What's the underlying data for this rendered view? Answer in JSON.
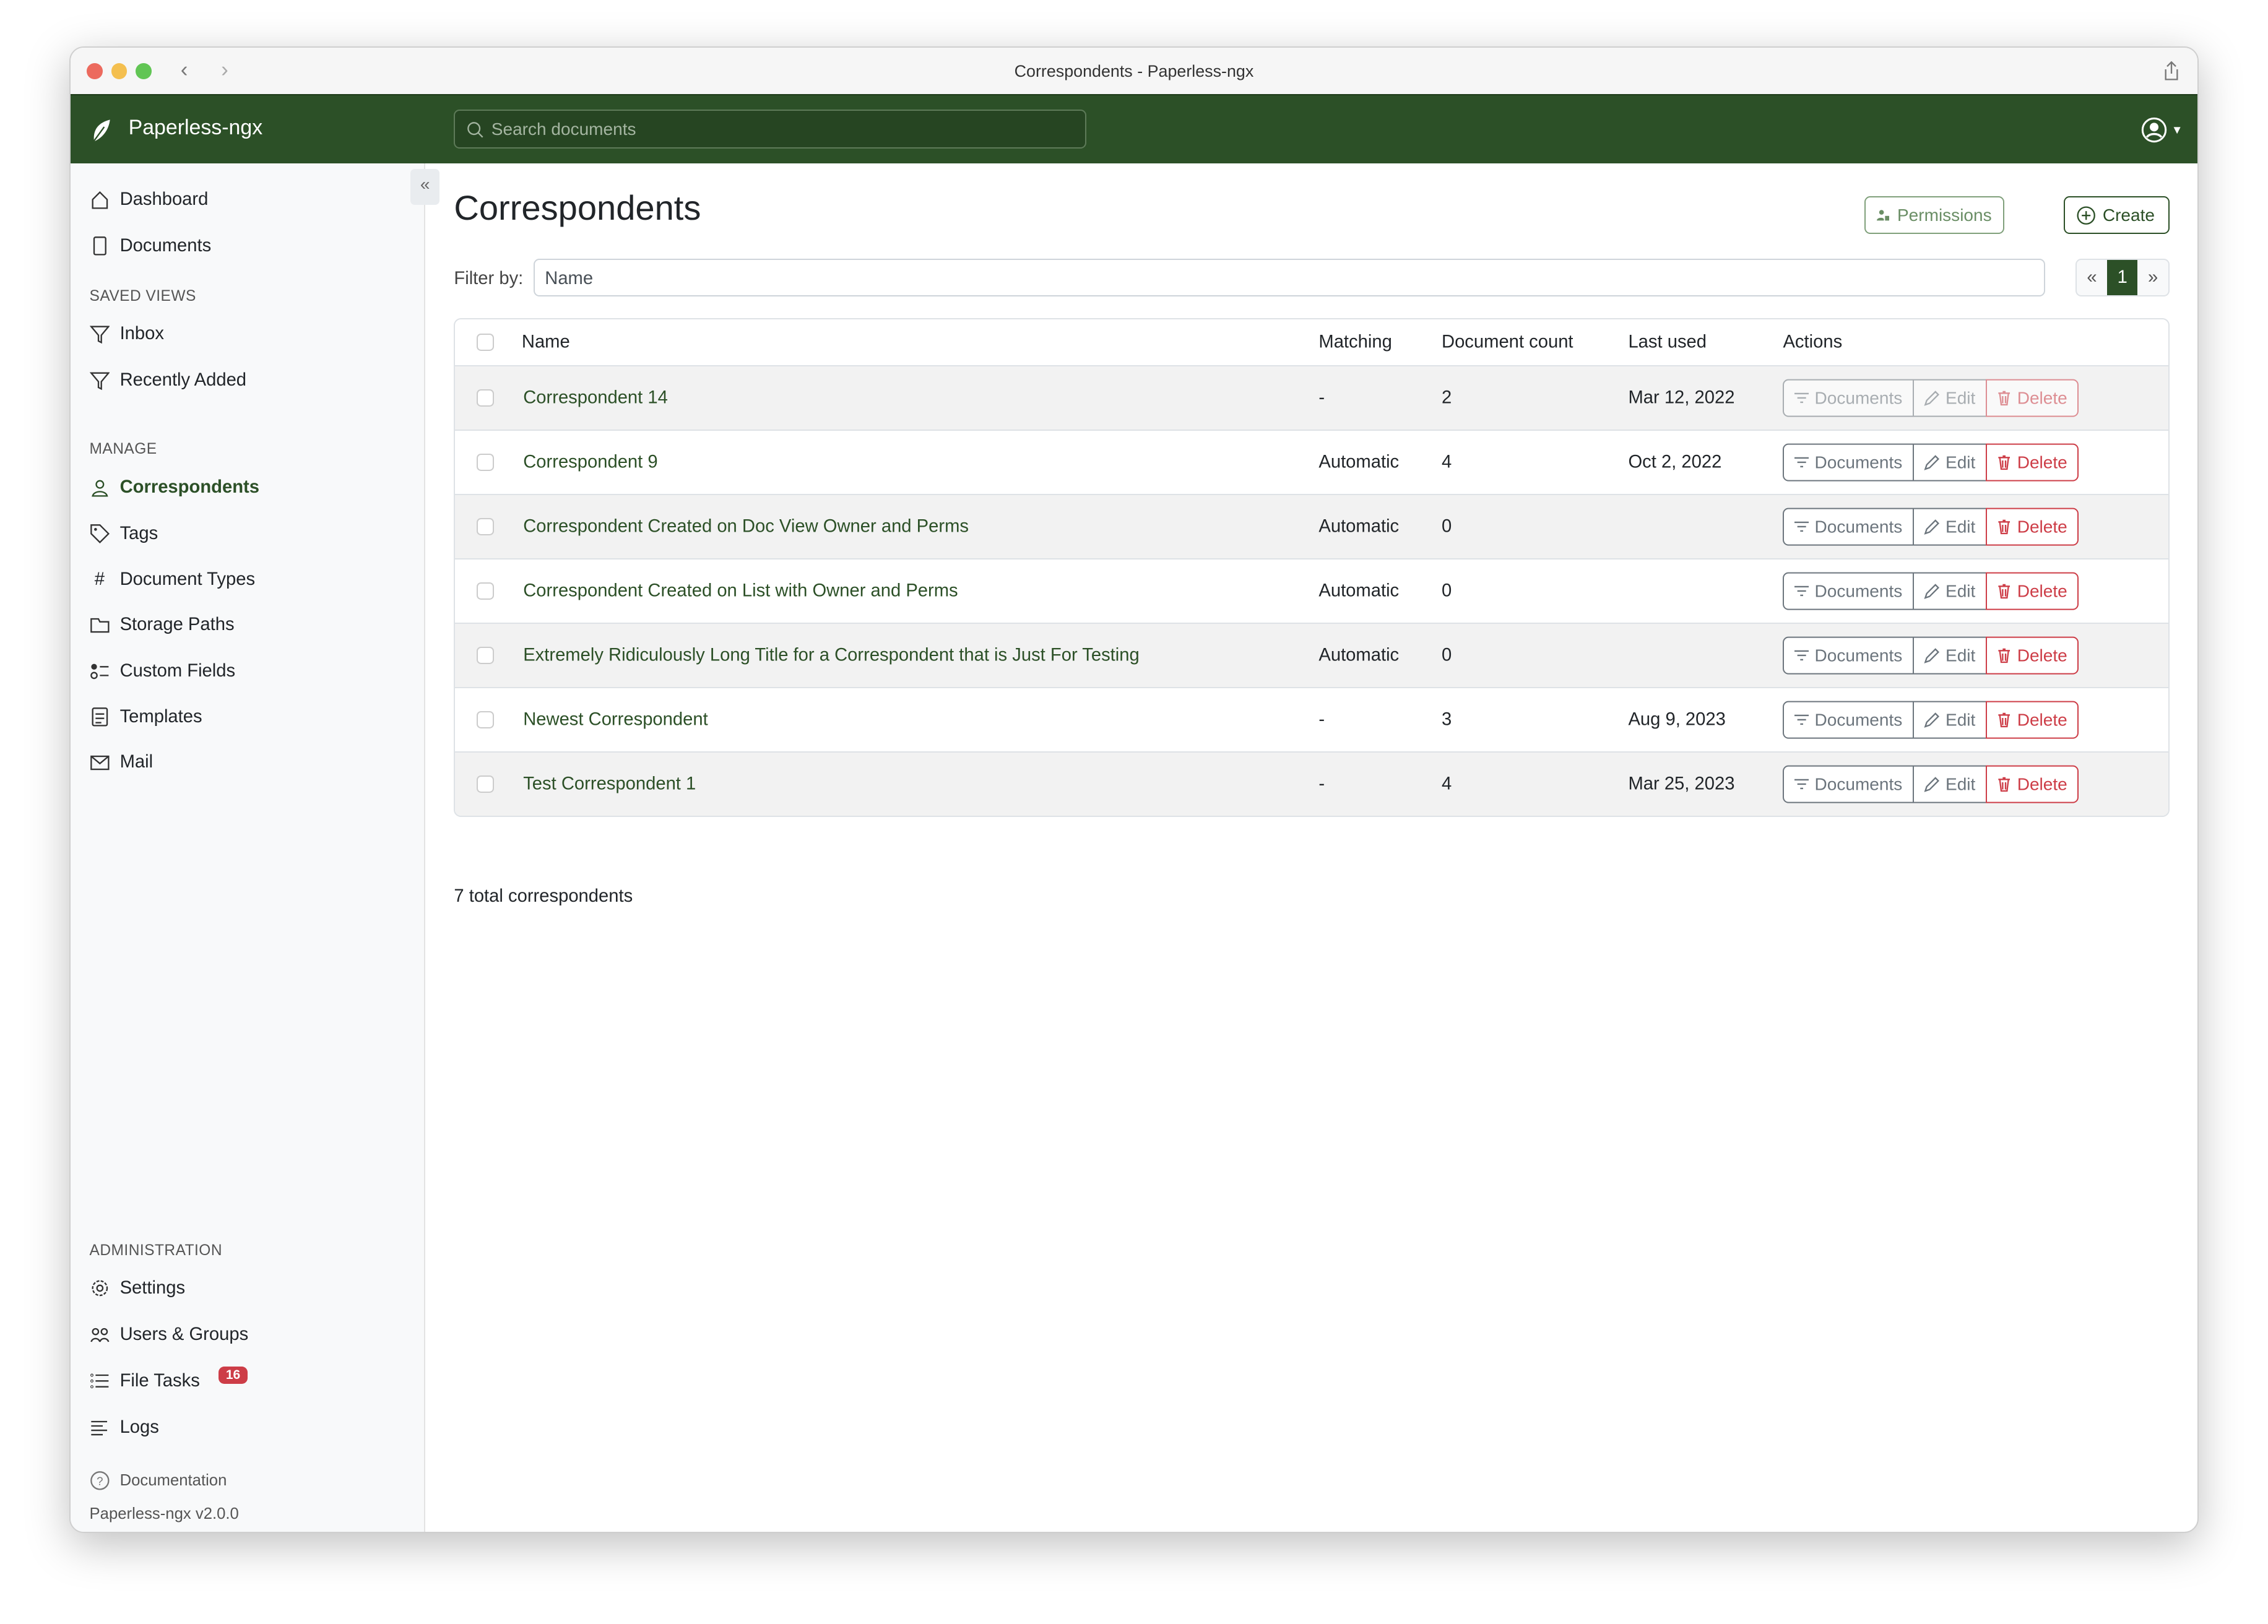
{
  "window": {
    "title": "Correspondents - Paperless-ngx"
  },
  "header": {
    "brand": "Paperless-ngx",
    "search_placeholder": "Search documents"
  },
  "sidebar": {
    "items": [
      {
        "label": "Dashboard",
        "icon": "house-icon"
      },
      {
        "label": "Documents",
        "icon": "files-icon"
      }
    ],
    "saved_views_heading": "SAVED VIEWS",
    "saved_views": [
      {
        "label": "Inbox",
        "icon": "funnel-icon"
      },
      {
        "label": "Recently Added",
        "icon": "funnel-icon"
      }
    ],
    "manage_heading": "MANAGE",
    "manage": [
      {
        "label": "Correspondents",
        "icon": "person-icon",
        "active": true
      },
      {
        "label": "Tags",
        "icon": "tags-icon"
      },
      {
        "label": "Document Types",
        "icon": "hash-icon"
      },
      {
        "label": "Storage Paths",
        "icon": "folder-icon"
      },
      {
        "label": "Custom Fields",
        "icon": "ui-radios-icon"
      },
      {
        "label": "Templates",
        "icon": "file-text-icon"
      },
      {
        "label": "Mail",
        "icon": "envelope-icon"
      }
    ],
    "admin_heading": "ADMINISTRATION",
    "admin": [
      {
        "label": "Settings",
        "icon": "gear-icon"
      },
      {
        "label": "Users & Groups",
        "icon": "people-icon"
      },
      {
        "label": "File Tasks",
        "icon": "list-task-icon",
        "badge": "16"
      },
      {
        "label": "Logs",
        "icon": "text-left-icon"
      }
    ],
    "documentation": "Documentation",
    "version": "Paperless-ngx v2.0.0"
  },
  "main": {
    "title": "Correspondents",
    "permissions_label": "Permissions",
    "create_label": "Create",
    "filter_label": "Filter by:",
    "filter_placeholder": "Name",
    "pager": {
      "prev": "«",
      "current": "1",
      "next": "»"
    },
    "columns": [
      "Name",
      "Matching",
      "Document count",
      "Last used",
      "Actions"
    ],
    "actions": {
      "documents": "Documents",
      "edit": "Edit",
      "delete": "Delete"
    },
    "rows": [
      {
        "name": "Correspondent 14",
        "matching": "-",
        "count": "2",
        "last_used": "Mar 12, 2022",
        "disabled": true
      },
      {
        "name": "Correspondent 9",
        "matching": "Automatic",
        "count": "4",
        "last_used": "Oct 2, 2022"
      },
      {
        "name": "Correspondent Created on Doc View Owner and Perms",
        "matching": "Automatic",
        "count": "0",
        "last_used": ""
      },
      {
        "name": "Correspondent Created on List with Owner and Perms",
        "matching": "Automatic",
        "count": "0",
        "last_used": ""
      },
      {
        "name": "Extremely Ridiculously Long Title for a Correspondent that is Just For Testing",
        "matching": "Automatic",
        "count": "0",
        "last_used": ""
      },
      {
        "name": "Newest Correspondent",
        "matching": "-",
        "count": "3",
        "last_used": "Aug 9, 2023"
      },
      {
        "name": "Test Correspondent 1",
        "matching": "-",
        "count": "4",
        "last_used": "Mar 25, 2023"
      }
    ],
    "total": "7 total correspondents"
  },
  "colors": {
    "brand": "#2c5027",
    "danger": "#cd3d47",
    "sidebar_bg": "#f8f9fa"
  }
}
